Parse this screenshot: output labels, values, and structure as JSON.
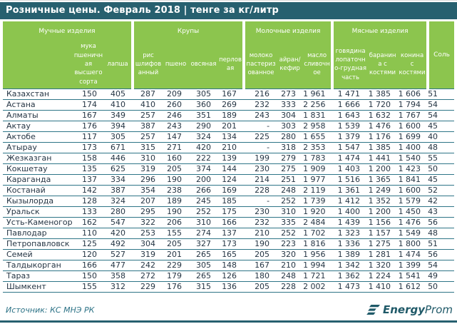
{
  "title": "Розничные цены. Февраль 2018 | тенге за кг/литр",
  "footer": {
    "source": "Источник: КС МНЭ РК",
    "logo_energy": "Energy",
    "logo_prom": "Prom"
  },
  "colors": {
    "accent_teal": "#27606F",
    "header_green": "#8CC54E",
    "row_line": "#2E7587",
    "source_text": "#2C7286",
    "logo_teal": "#1F5968",
    "data_text": "#253544"
  },
  "chart_data": {
    "type": "table",
    "title": "Розничные цены. Февраль 2018 | тенге за кг/литр",
    "units": "тенге за кг/литр",
    "column_groups": [
      {
        "label": "Мучные изделия",
        "span": 2
      },
      {
        "label": "Крупы",
        "span": 4
      },
      {
        "label": "Молочные изделия",
        "span": 3
      },
      {
        "label": "Мясные изделия",
        "span": 3
      },
      {
        "label": "Соль",
        "span": 1
      }
    ],
    "columns": [
      "мука пшеничная высшего сорта",
      "лапша",
      "рис шлифованный",
      "пшено",
      "овсяная",
      "перловая",
      "молоко пастеризованное",
      "айран/ кефир",
      "масло сливочное",
      "говядина лопаточно-грудная часть",
      "баранина с костями",
      "конина с костями",
      "Соль"
    ],
    "rows": [
      {
        "name": "Казахстан",
        "values": [
          "150",
          "405",
          "287",
          "209",
          "305",
          "167",
          "216",
          "273",
          "1 961",
          "1 471",
          "1 385",
          "1 606",
          "51"
        ]
      },
      {
        "name": "Астана",
        "values": [
          "174",
          "410",
          "410",
          "260",
          "360",
          "269",
          "232",
          "333",
          "2 256",
          "1 666",
          "1 720",
          "1 794",
          "54"
        ]
      },
      {
        "name": "Алматы",
        "values": [
          "167",
          "349",
          "257",
          "246",
          "351",
          "189",
          "243",
          "304",
          "1 831",
          "1 643",
          "1 632",
          "1 767",
          "54"
        ]
      },
      {
        "name": "Актау",
        "values": [
          "176",
          "394",
          "387",
          "243",
          "290",
          "201",
          "-",
          "303",
          "2 958",
          "1 539",
          "1 476",
          "1 600",
          "45"
        ]
      },
      {
        "name": "Актобе",
        "values": [
          "117",
          "305",
          "257",
          "147",
          "324",
          "134",
          "225",
          "280",
          "1 655",
          "1 379",
          "1 176",
          "1 699",
          "40"
        ]
      },
      {
        "name": "Атырау",
        "values": [
          "173",
          "671",
          "315",
          "271",
          "420",
          "210",
          "-",
          "318",
          "2 353",
          "1 547",
          "1 385",
          "1 400",
          "48"
        ]
      },
      {
        "name": "Жезказган",
        "values": [
          "158",
          "446",
          "310",
          "160",
          "222",
          "139",
          "199",
          "279",
          "1 783",
          "1 474",
          "1 441",
          "1 540",
          "55"
        ]
      },
      {
        "name": "Кокшетау",
        "values": [
          "135",
          "625",
          "319",
          "205",
          "374",
          "144",
          "230",
          "275",
          "1 909",
          "1 403",
          "1 200",
          "1 423",
          "50"
        ]
      },
      {
        "name": "Караганда",
        "values": [
          "137",
          "334",
          "296",
          "190",
          "200",
          "124",
          "214",
          "251",
          "1 977",
          "1 516",
          "1 365",
          "1 841",
          "45"
        ]
      },
      {
        "name": "Костанай",
        "values": [
          "142",
          "387",
          "354",
          "238",
          "266",
          "169",
          "228",
          "248",
          "2 119",
          "1 361",
          "1 249",
          "1 600",
          "52"
        ]
      },
      {
        "name": "Кызылорда",
        "values": [
          "128",
          "324",
          "207",
          "189",
          "245",
          "185",
          "-",
          "252",
          "1 739",
          "1 412",
          "1 352",
          "1 579",
          "42"
        ]
      },
      {
        "name": "Уральск",
        "values": [
          "133",
          "280",
          "295",
          "190",
          "252",
          "175",
          "230",
          "310",
          "1 920",
          "1 400",
          "1 200",
          "1 450",
          "43"
        ]
      },
      {
        "name": "Усть-Каменогор",
        "values": [
          "162",
          "547",
          "322",
          "206",
          "310",
          "166",
          "232",
          "335",
          "2 484",
          "1 439",
          "1 156",
          "1 476",
          "56"
        ]
      },
      {
        "name": "Павлодар",
        "values": [
          "110",
          "420",
          "253",
          "155",
          "274",
          "137",
          "210",
          "252",
          "1 702",
          "1 323",
          "1 157",
          "1 549",
          "48"
        ]
      },
      {
        "name": "Петропавловск",
        "values": [
          "125",
          "492",
          "304",
          "205",
          "327",
          "173",
          "190",
          "223",
          "1 816",
          "1 336",
          "1 275",
          "1 800",
          "51"
        ]
      },
      {
        "name": "Семей",
        "values": [
          "120",
          "527",
          "319",
          "201",
          "265",
          "165",
          "205",
          "320",
          "1 956",
          "1 389",
          "1 281",
          "1 474",
          "56"
        ]
      },
      {
        "name": "Талдыкорган",
        "values": [
          "166",
          "477",
          "242",
          "229",
          "305",
          "148",
          "167",
          "210",
          "1 994",
          "1 342",
          "1 320",
          "1 399",
          "54"
        ]
      },
      {
        "name": "Тараз",
        "values": [
          "150",
          "358",
          "272",
          "179",
          "265",
          "126",
          "180",
          "248",
          "1 721",
          "1 362",
          "1 224",
          "1 541",
          "49"
        ]
      },
      {
        "name": "Шымкент",
        "values": [
          "155",
          "312",
          "229",
          "176",
          "315",
          "136",
          "205",
          "228",
          "2 002",
          "1 473",
          "1 410",
          "1 612",
          "50"
        ]
      }
    ]
  }
}
